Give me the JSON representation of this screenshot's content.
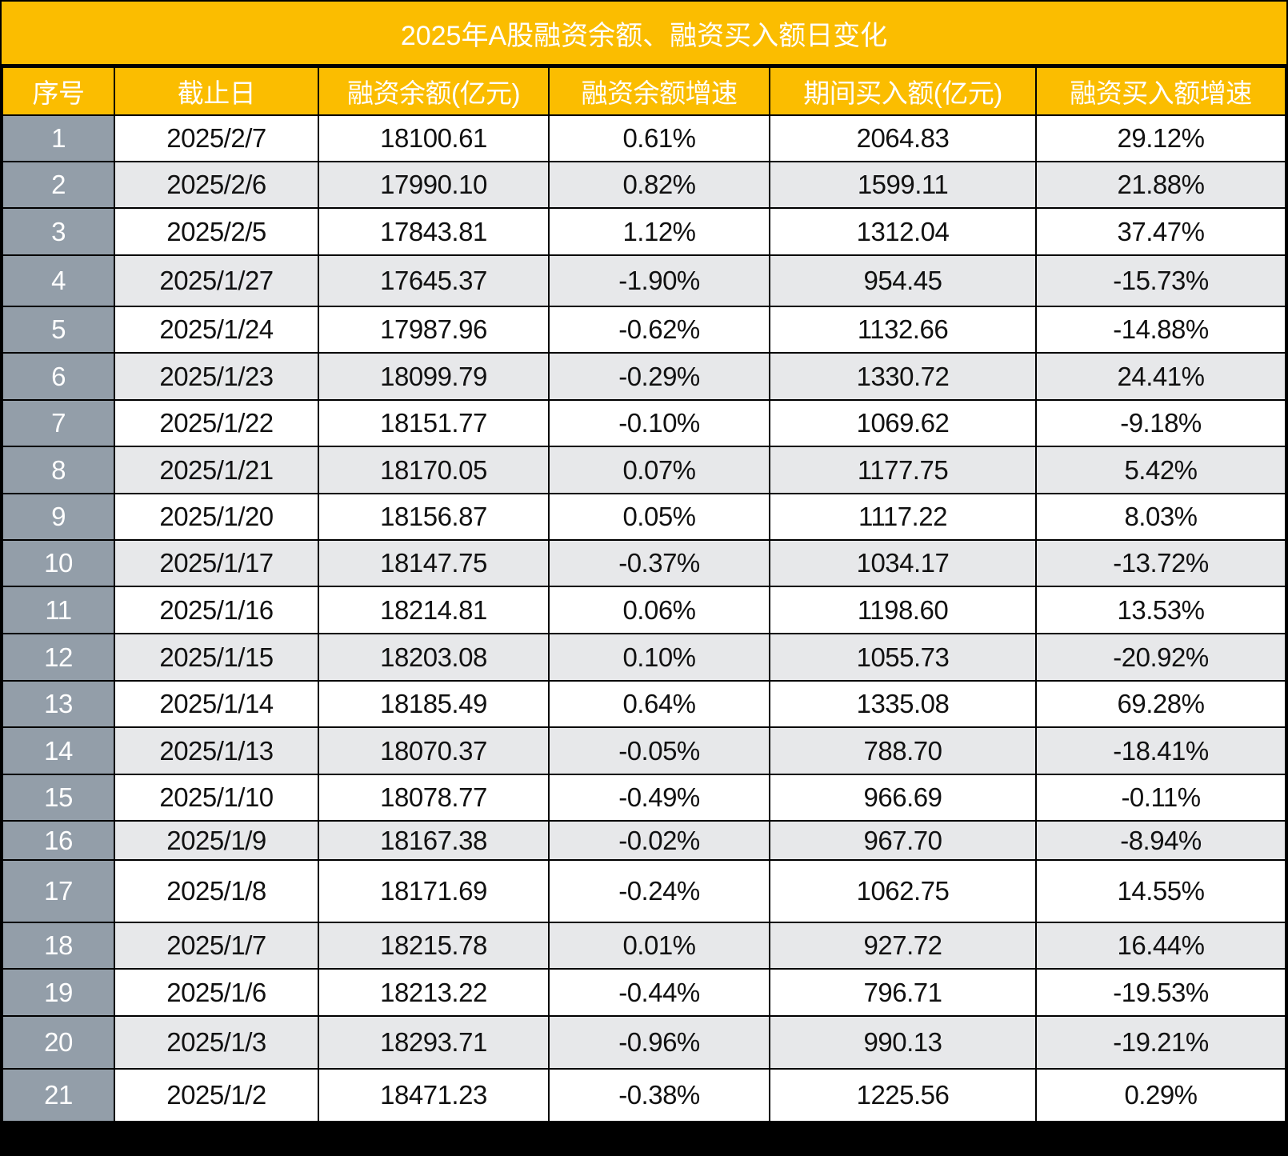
{
  "title": "2025年A股融资余额、融资买入额日变化",
  "colors": {
    "header": "#FBBD00",
    "index_column": "#939EA9",
    "alt_row": "#E7E8EA"
  },
  "columns": [
    "序号",
    "截止日",
    "融资余额(亿元)",
    "融资余额增速",
    "期间买入额(亿元)",
    "融资买入额增速"
  ],
  "rows": [
    [
      "1",
      "2025/2/7",
      "18100.61",
      "0.61%",
      "2064.83",
      "29.12%"
    ],
    [
      "2",
      "2025/2/6",
      "17990.10",
      "0.82%",
      "1599.11",
      "21.88%"
    ],
    [
      "3",
      "2025/2/5",
      "17843.81",
      "1.12%",
      "1312.04",
      "37.47%"
    ],
    [
      "4",
      "2025/1/27",
      "17645.37",
      "-1.90%",
      "954.45",
      "-15.73%"
    ],
    [
      "5",
      "2025/1/24",
      "17987.96",
      "-0.62%",
      "1132.66",
      "-14.88%"
    ],
    [
      "6",
      "2025/1/23",
      "18099.79",
      "-0.29%",
      "1330.72",
      "24.41%"
    ],
    [
      "7",
      "2025/1/22",
      "18151.77",
      "-0.10%",
      "1069.62",
      "-9.18%"
    ],
    [
      "8",
      "2025/1/21",
      "18170.05",
      "0.07%",
      "1177.75",
      "5.42%"
    ],
    [
      "9",
      "2025/1/20",
      "18156.87",
      "0.05%",
      "1117.22",
      "8.03%"
    ],
    [
      "10",
      "2025/1/17",
      "18147.75",
      "-0.37%",
      "1034.17",
      "-13.72%"
    ],
    [
      "11",
      "2025/1/16",
      "18214.81",
      "0.06%",
      "1198.60",
      "13.53%"
    ],
    [
      "12",
      "2025/1/15",
      "18203.08",
      "0.10%",
      "1055.73",
      "-20.92%"
    ],
    [
      "13",
      "2025/1/14",
      "18185.49",
      "0.64%",
      "1335.08",
      "69.28%"
    ],
    [
      "14",
      "2025/1/13",
      "18070.37",
      "-0.05%",
      "788.70",
      "-18.41%"
    ],
    [
      "15",
      "2025/1/10",
      "18078.77",
      "-0.49%",
      "966.69",
      "-0.11%"
    ],
    [
      "16",
      "2025/1/9",
      "18167.38",
      "-0.02%",
      "967.70",
      "-8.94%"
    ],
    [
      "17",
      "2025/1/8",
      "18171.69",
      "-0.24%",
      "1062.75",
      "14.55%"
    ],
    [
      "18",
      "2025/1/7",
      "18215.78",
      "0.01%",
      "927.72",
      "16.44%"
    ],
    [
      "19",
      "2025/1/6",
      "18213.22",
      "-0.44%",
      "796.71",
      "-19.53%"
    ],
    [
      "20",
      "2025/1/3",
      "18293.71",
      "-0.96%",
      "990.13",
      "-19.21%"
    ],
    [
      "21",
      "2025/1/2",
      "18471.23",
      "-0.38%",
      "1225.56",
      "0.29%"
    ]
  ]
}
